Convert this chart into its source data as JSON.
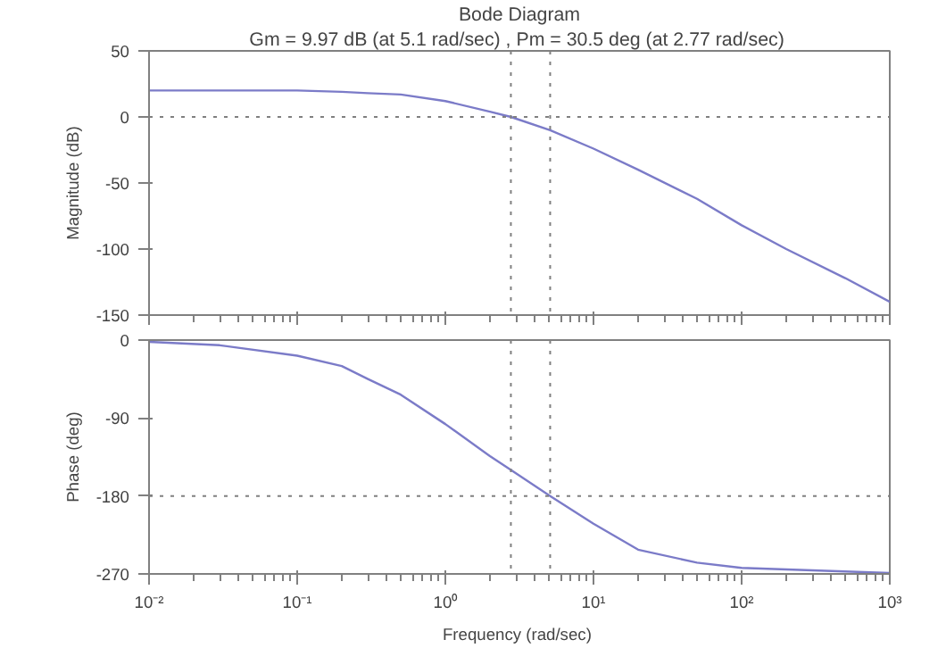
{
  "chart_data": [
    {
      "type": "line",
      "title": "Bode Diagram",
      "subtitle": "Gm = 9.97 dB (at 5.1 rad/sec) ,  Pm = 30.5 deg (at 2.77 rad/sec)",
      "ylabel": "Magnitude (dB)",
      "log": "x",
      "x": [
        0.01,
        0.03,
        0.1,
        0.2,
        0.3,
        0.5,
        1,
        2,
        2.77,
        5.1,
        10,
        20,
        50,
        100,
        200,
        500,
        1000
      ],
      "series": [
        {
          "color": "#7b7bc8",
          "values": [
            20,
            20,
            20,
            19,
            18,
            17,
            12,
            4,
            0,
            -10,
            -24,
            -40,
            -62,
            -82,
            -100,
            -122,
            -140
          ]
        }
      ],
      "xlim": [
        0.01,
        1000
      ],
      "xticks": [
        {
          "value": 0.01,
          "label": null
        },
        {
          "value": 0.1,
          "label": null
        },
        {
          "value": 1,
          "label": null
        },
        {
          "value": 10,
          "label": null
        },
        {
          "value": 100,
          "label": null
        },
        {
          "value": 1000,
          "label": null
        }
      ],
      "ylim": [
        -150,
        50
      ],
      "yticks": [
        -150,
        -100,
        -50,
        0,
        50
      ],
      "grid": false,
      "tick_labels": "y",
      "line_style": "solid",
      "marker": "none",
      "ref_lines": [
        {
          "axis": "y",
          "value": 0,
          "color": "#808080",
          "line_style": "dotted"
        },
        {
          "axis": "x",
          "value": 2.77,
          "color": "#808080",
          "line_style": "dotted"
        },
        {
          "axis": "x",
          "value": 5.1,
          "color": "#808080",
          "line_style": "dotted"
        }
      ]
    },
    {
      "type": "line",
      "xlabel": "Frequency  (rad/sec)",
      "ylabel": "Phase (deg)",
      "log": "x",
      "x": [
        0.01,
        0.03,
        0.1,
        0.2,
        0.3,
        0.5,
        1,
        2,
        2.77,
        5.1,
        10,
        20,
        50,
        100,
        1000
      ],
      "series": [
        {
          "color": "#7b7bc8",
          "values": [
            -2,
            -6,
            -18,
            -30,
            -45,
            -63,
            -97,
            -134,
            -150,
            -180,
            -212,
            -242,
            -257,
            -263,
            -269
          ]
        }
      ],
      "xlim": [
        0.01,
        1000
      ],
      "xticks": [
        {
          "value": 0.01,
          "label": "10⁻²"
        },
        {
          "value": 0.1,
          "label": "10⁻¹"
        },
        {
          "value": 1,
          "label": "10⁰"
        },
        {
          "value": 10,
          "label": "10¹"
        },
        {
          "value": 100,
          "label": "10²"
        },
        {
          "value": 1000,
          "label": "10³"
        }
      ],
      "ylim": [
        -270,
        0
      ],
      "yticks": [
        -270,
        -180,
        -90,
        0
      ],
      "grid": false,
      "line_style": "solid",
      "marker": "none",
      "ref_lines": [
        {
          "axis": "y",
          "value": -180,
          "color": "#808080",
          "line_style": "dotted"
        },
        {
          "axis": "x",
          "value": 2.77,
          "color": "#808080",
          "line_style": "dotted"
        },
        {
          "axis": "x",
          "value": 5.1,
          "color": "#808080",
          "line_style": "dotted"
        }
      ]
    }
  ]
}
